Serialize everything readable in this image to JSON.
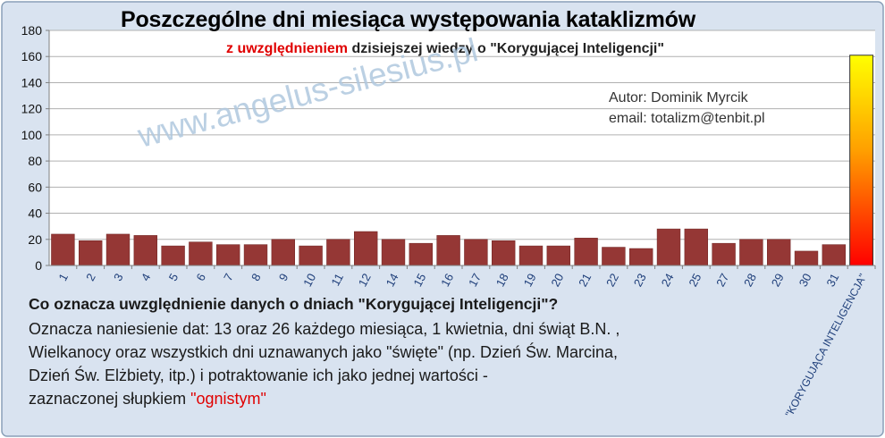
{
  "chart_data": {
    "type": "bar",
    "title": "Poszczególne dni miesiąca występowania kataklizmów",
    "subtitle_red": "z uwzględnieniem",
    "subtitle_rest": "dzisiejszej wiedzy  o \"Korygującej Inteligencji\"",
    "categories": [
      "1",
      "2",
      "3",
      "4",
      "5",
      "6",
      "7",
      "8",
      "9",
      "10",
      "11",
      "12",
      "14",
      "15",
      "16",
      "17",
      "18",
      "19",
      "20",
      "21",
      "22",
      "23",
      "24",
      "25",
      "27",
      "28",
      "29",
      "30",
      "31",
      "\"KORYGUJĄCA INTELIGENCJA\""
    ],
    "values": [
      24,
      19,
      24,
      23,
      15,
      18,
      16,
      16,
      20,
      15,
      20,
      26,
      20,
      17,
      23,
      20,
      19,
      15,
      15,
      21,
      14,
      13,
      28,
      28,
      17,
      20,
      20,
      11,
      16,
      161
    ],
    "ylim": [
      0,
      180
    ],
    "yticks": [
      0,
      20,
      40,
      60,
      80,
      100,
      120,
      140,
      160,
      180
    ],
    "grid": true,
    "bar_color": "#953735",
    "highlight_gradient": [
      "#ffff00",
      "#ffa000",
      "#ff0000"
    ]
  },
  "author": "Autor:  Dominik Myrcik",
  "email": "email:  totalizm@tenbit.pl",
  "watermark": "www.angelus-silesius.pl",
  "note": {
    "heading": "Co oznacza uwzględnienie danych o dniach \"Korygującej Inteligencji\"?",
    "lines": [
      "Oznacza naniesienie dat: 13 oraz 26 każdego miesiąca, 1 kwietnia, dni świąt B.N. ,",
      "Wielkanocy oraz wszystkich dni uznawanych jako \"święte\" (np. Dzień Św. Marcina,",
      "Dzień Św. Elżbiety, itp.) i potraktowanie ich jako jednej wartości -"
    ],
    "last_line_start": "zaznaczonej słupkiem ",
    "last_line_highlight": "\"ognistym\""
  },
  "colors": {
    "background": "#d9e3f0",
    "frame": "#ffffff",
    "grid": "#b0b0b0",
    "axis": "#808080"
  }
}
